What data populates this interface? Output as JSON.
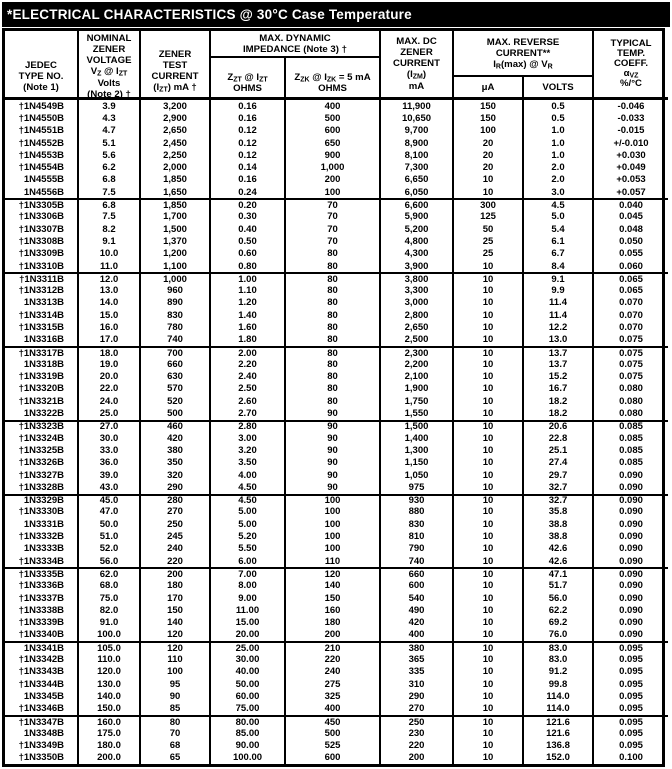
{
  "title": "*ELECTRICAL CHARACTERISTICS @ 30°C Case Temperature",
  "header": {
    "jedec": [
      "JEDEC",
      "TYPE NO.",
      "(Note 1)"
    ],
    "nominal": [
      "NOMINAL",
      "ZENER",
      "VOLTAGE",
      "V~Z~ @ I~ZT~",
      "Volts",
      "(Note 2) †"
    ],
    "test_current": [
      "ZENER",
      "TEST",
      "CURRENT",
      "(I~ZT~) mA †"
    ],
    "impedance_band": [
      "MAX. DYNAMIC",
      "IMPEDANCE (Note 3) †"
    ],
    "zzt": [
      "Z~ZT~ @ I~ZT~",
      "OHMS"
    ],
    "zzk": [
      "Z~ZK~ @ I~ZK~ = 5 mA",
      "OHMS"
    ],
    "izm": [
      "MAX. DC",
      "ZENER",
      "CURRENT",
      "(I~ZM~)",
      "mA"
    ],
    "reverse_band": [
      "MAX. REVERSE",
      "CURRENT**",
      "I~R~(max) @ V~R~"
    ],
    "ua": "μA",
    "volts": "VOLTS",
    "temp": [
      "TYPICAL",
      "TEMP.",
      "COEFF.",
      "α~VZ~",
      "%/°C"
    ]
  },
  "groups": [
    {
      "rows": [
        [
          "†1N4549B",
          "3.9",
          "3,200",
          "0.16",
          "400",
          "11,900",
          "150",
          "0.5",
          "-0.046"
        ],
        [
          "†1N4550B",
          "4.3",
          "2,900",
          "0.16",
          "500",
          "10,650",
          "150",
          "0.5",
          "-0.033"
        ],
        [
          "†1N4551B",
          "4.7",
          "2,650",
          "0.12",
          "600",
          "9,700",
          "100",
          "1.0",
          "-0.015"
        ],
        [
          "†1N4552B",
          "5.1",
          "2,450",
          "0.12",
          "650",
          "8,900",
          "20",
          "1.0",
          "+/-0.010"
        ],
        [
          "†1N4553B",
          "5.6",
          "2,250",
          "0.12",
          "900",
          "8,100",
          "20",
          "1.0",
          "+0.030"
        ],
        [
          "†1N4554B",
          "6.2",
          "2,000",
          "0.14",
          "1,000",
          "7,300",
          "20",
          "2.0",
          "+0.049"
        ],
        [
          "1N4555B",
          "6.8",
          "1,850",
          "0.16",
          "200",
          "6,650",
          "10",
          "2.0",
          "+0.053"
        ],
        [
          "1N4556B",
          "7.5",
          "1,650",
          "0.24",
          "100",
          "6,050",
          "10",
          "3.0",
          "+0.057"
        ]
      ]
    },
    {
      "rows": [
        [
          "†1N3305B",
          "6.8",
          "1,850",
          "0.20",
          "70",
          "6,600",
          "300",
          "4.5",
          "0.040"
        ],
        [
          "†1N3306B",
          "7.5",
          "1,700",
          "0.30",
          "70",
          "5,900",
          "125",
          "5.0",
          "0.045"
        ],
        [
          "†1N3307B",
          "8.2",
          "1,500",
          "0.40",
          "70",
          "5,200",
          "50",
          "5.4",
          "0.048"
        ],
        [
          "†1N3308B",
          "9.1",
          "1,370",
          "0.50",
          "70",
          "4,800",
          "25",
          "6.1",
          "0.050"
        ],
        [
          "†1N3309B",
          "10.0",
          "1,200",
          "0.60",
          "80",
          "4,300",
          "25",
          "6.7",
          "0.055"
        ],
        [
          "†1N3310B",
          "11.0",
          "1,100",
          "0.80",
          "80",
          "3,900",
          "10",
          "8.4",
          "0.060"
        ]
      ]
    },
    {
      "rows": [
        [
          "†1N3311B",
          "12.0",
          "1,000",
          "1.00",
          "80",
          "3,800",
          "10",
          "9.1",
          "0.065"
        ],
        [
          "†1N3312B",
          "13.0",
          "960",
          "1.10",
          "80",
          "3,300",
          "10",
          "9.9",
          "0.065"
        ],
        [
          "1N3313B",
          "14.0",
          "890",
          "1.20",
          "80",
          "3,000",
          "10",
          "11.4",
          "0.070"
        ],
        [
          "†1N3314B",
          "15.0",
          "830",
          "1.40",
          "80",
          "2,800",
          "10",
          "11.4",
          "0.070"
        ],
        [
          "†1N3315B",
          "16.0",
          "780",
          "1.60",
          "80",
          "2,650",
          "10",
          "12.2",
          "0.070"
        ],
        [
          "1N3316B",
          "17.0",
          "740",
          "1.80",
          "80",
          "2,500",
          "10",
          "13.0",
          "0.075"
        ]
      ]
    },
    {
      "rows": [
        [
          "†1N3317B",
          "18.0",
          "700",
          "2.00",
          "80",
          "2,300",
          "10",
          "13.7",
          "0.075"
        ],
        [
          "1N3318B",
          "19.0",
          "660",
          "2.20",
          "80",
          "2,200",
          "10",
          "13.7",
          "0.075"
        ],
        [
          "†1N3319B",
          "20.0",
          "630",
          "2.40",
          "80",
          "2,100",
          "10",
          "15.2",
          "0.075"
        ],
        [
          "†1N3320B",
          "22.0",
          "570",
          "2.50",
          "80",
          "1,900",
          "10",
          "16.7",
          "0.080"
        ],
        [
          "†1N3321B",
          "24.0",
          "520",
          "2.60",
          "80",
          "1,750",
          "10",
          "18.2",
          "0.080"
        ],
        [
          "1N3322B",
          "25.0",
          "500",
          "2.70",
          "90",
          "1,550",
          "10",
          "18.2",
          "0.080"
        ]
      ]
    },
    {
      "rows": [
        [
          "†1N3323B",
          "27.0",
          "460",
          "2.80",
          "90",
          "1,500",
          "10",
          "20.6",
          "0.085"
        ],
        [
          "†1N3324B",
          "30.0",
          "420",
          "3.00",
          "90",
          "1,400",
          "10",
          "22.8",
          "0.085"
        ],
        [
          "†1N3325B",
          "33.0",
          "380",
          "3.20",
          "90",
          "1,300",
          "10",
          "25.1",
          "0.085"
        ],
        [
          "†1N3326B",
          "36.0",
          "350",
          "3.50",
          "90",
          "1,150",
          "10",
          "27.4",
          "0.085"
        ],
        [
          "†1N3327B",
          "39.0",
          "320",
          "4.00",
          "90",
          "1,050",
          "10",
          "29.7",
          "0.090"
        ],
        [
          "†1N3328B",
          "43.0",
          "290",
          "4.50",
          "90",
          "975",
          "10",
          "32.7",
          "0.090"
        ]
      ]
    },
    {
      "rows": [
        [
          "1N3329B",
          "45.0",
          "280",
          "4.50",
          "100",
          "930",
          "10",
          "32.7",
          "0.090"
        ],
        [
          "†1N3330B",
          "47.0",
          "270",
          "5.00",
          "100",
          "880",
          "10",
          "35.8",
          "0.090"
        ],
        [
          "1N3331B",
          "50.0",
          "250",
          "5.00",
          "100",
          "830",
          "10",
          "38.8",
          "0.090"
        ],
        [
          "†1N3332B",
          "51.0",
          "245",
          "5.20",
          "100",
          "810",
          "10",
          "38.8",
          "0.090"
        ],
        [
          "1N3333B",
          "52.0",
          "240",
          "5.50",
          "100",
          "790",
          "10",
          "42.6",
          "0.090"
        ],
        [
          "†1N3334B",
          "56.0",
          "220",
          "6.00",
          "110",
          "740",
          "10",
          "42.6",
          "0.090"
        ]
      ]
    },
    {
      "rows": [
        [
          "†1N3335B",
          "62.0",
          "200",
          "7.00",
          "120",
          "660",
          "10",
          "47.1",
          "0.090"
        ],
        [
          "†1N3336B",
          "68.0",
          "180",
          "8.00",
          "140",
          "600",
          "10",
          "51.7",
          "0.090"
        ],
        [
          "†1N3337B",
          "75.0",
          "170",
          "9.00",
          "150",
          "540",
          "10",
          "56.0",
          "0.090"
        ],
        [
          "†1N3338B",
          "82.0",
          "150",
          "11.00",
          "160",
          "490",
          "10",
          "62.2",
          "0.090"
        ],
        [
          "†1N3339B",
          "91.0",
          "140",
          "15.00",
          "180",
          "420",
          "10",
          "69.2",
          "0.090"
        ],
        [
          "†1N3340B",
          "100.0",
          "120",
          "20.00",
          "200",
          "400",
          "10",
          "76.0",
          "0.090"
        ]
      ]
    },
    {
      "rows": [
        [
          "1N3341B",
          "105.0",
          "120",
          "25.00",
          "210",
          "380",
          "10",
          "83.0",
          "0.095"
        ],
        [
          "†1N3342B",
          "110.0",
          "110",
          "30.00",
          "220",
          "365",
          "10",
          "83.0",
          "0.095"
        ],
        [
          "†1N3343B",
          "120.0",
          "100",
          "40.00",
          "240",
          "335",
          "10",
          "91.2",
          "0.095"
        ],
        [
          "†1N3344B",
          "130.0",
          "95",
          "50.00",
          "275",
          "310",
          "10",
          "99.8",
          "0.095"
        ],
        [
          "1N3345B",
          "140.0",
          "90",
          "60.00",
          "325",
          "290",
          "10",
          "114.0",
          "0.095"
        ],
        [
          "†1N3346B",
          "150.0",
          "85",
          "75.00",
          "400",
          "270",
          "10",
          "114.0",
          "0.095"
        ]
      ]
    },
    {
      "rows": [
        [
          "†1N3347B",
          "160.0",
          "80",
          "80.00",
          "450",
          "250",
          "10",
          "121.6",
          "0.095"
        ],
        [
          "1N3348B",
          "175.0",
          "70",
          "85.00",
          "500",
          "230",
          "10",
          "121.6",
          "0.095"
        ],
        [
          "†1N3349B",
          "180.0",
          "68",
          "90.00",
          "525",
          "220",
          "10",
          "136.8",
          "0.095"
        ],
        [
          "†1N3350B",
          "200.0",
          "65",
          "100.00",
          "600",
          "200",
          "10",
          "152.0",
          "0.100"
        ]
      ]
    }
  ]
}
